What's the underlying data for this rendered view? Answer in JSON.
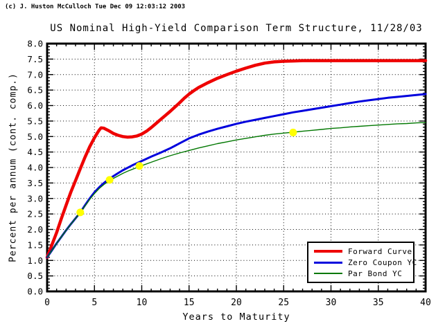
{
  "window": {
    "copyright": "(c) J. Huston McCulloch Tue Dec 09 12:03:12 2003"
  },
  "chart_data": {
    "type": "line",
    "title": "US Nominal High-Yield Comparison Term Structure, 11/28/03",
    "xlabel": "Years to Maturity",
    "ylabel": "Percent per annum (cont. comp.)",
    "xlim": [
      0,
      40
    ],
    "ylim": [
      0,
      8
    ],
    "x_major_ticks": [
      "0",
      "5",
      "10",
      "15",
      "20",
      "25",
      "30",
      "35",
      "40"
    ],
    "x_minor_step": 1,
    "y_tick_labels": [
      "0.0",
      "0.5",
      "1.0",
      "1.5",
      "2.0",
      "2.5",
      "3.0",
      "3.5",
      "4.0",
      "4.5",
      "5.0",
      "5.5",
      "6.0",
      "6.5",
      "7.0",
      "7.5",
      "8.0"
    ],
    "y_major_step": 0.5,
    "y_minor_step": 0.1,
    "grid": "dotted black at every major tick, box frame with inward ticks on all four sides",
    "legend_position": "lower right",
    "series": [
      {
        "name": "Forward Curve",
        "color": "#ee0000",
        "line_width": 4.5,
        "points": [
          [
            0,
            1.1
          ],
          [
            0.5,
            1.5
          ],
          [
            1,
            1.9
          ],
          [
            1.5,
            2.35
          ],
          [
            2,
            2.78
          ],
          [
            2.5,
            3.2
          ],
          [
            3,
            3.58
          ],
          [
            3.5,
            3.96
          ],
          [
            4,
            4.33
          ],
          [
            4.5,
            4.67
          ],
          [
            5,
            4.96
          ],
          [
            5.3,
            5.11
          ],
          [
            5.5,
            5.21
          ],
          [
            5.7,
            5.28
          ],
          [
            6,
            5.27
          ],
          [
            6.5,
            5.19
          ],
          [
            7,
            5.1
          ],
          [
            7.5,
            5.04
          ],
          [
            8,
            5.0
          ],
          [
            8.5,
            4.98
          ],
          [
            9,
            4.99
          ],
          [
            9.5,
            5.02
          ],
          [
            10,
            5.08
          ],
          [
            10.5,
            5.17
          ],
          [
            11,
            5.29
          ],
          [
            11.5,
            5.42
          ],
          [
            12,
            5.55
          ],
          [
            12.5,
            5.68
          ],
          [
            13,
            5.81
          ],
          [
            13.5,
            5.95
          ],
          [
            14,
            6.09
          ],
          [
            14.5,
            6.24
          ],
          [
            15,
            6.37
          ],
          [
            15.5,
            6.48
          ],
          [
            16,
            6.58
          ],
          [
            17,
            6.74
          ],
          [
            18,
            6.88
          ],
          [
            19,
            7.0
          ],
          [
            20,
            7.11
          ],
          [
            21,
            7.21
          ],
          [
            22,
            7.3
          ],
          [
            23,
            7.37
          ],
          [
            24,
            7.41
          ],
          [
            25,
            7.43
          ],
          [
            26,
            7.44
          ],
          [
            27,
            7.45
          ],
          [
            28,
            7.45
          ],
          [
            30,
            7.45
          ],
          [
            32,
            7.45
          ],
          [
            34,
            7.45
          ],
          [
            36,
            7.45
          ],
          [
            38,
            7.45
          ],
          [
            40,
            7.45
          ]
        ]
      },
      {
        "name": "Zero Coupon YC",
        "color": "#0000dd",
        "line_width": 3,
        "points": [
          [
            0,
            1.1
          ],
          [
            0.5,
            1.32
          ],
          [
            1,
            1.55
          ],
          [
            1.5,
            1.76
          ],
          [
            2,
            1.97
          ],
          [
            2.5,
            2.17
          ],
          [
            3,
            2.36
          ],
          [
            3.5,
            2.55
          ],
          [
            4,
            2.78
          ],
          [
            4.5,
            3.0
          ],
          [
            5,
            3.2
          ],
          [
            5.5,
            3.36
          ],
          [
            6,
            3.5
          ],
          [
            6.5,
            3.62
          ],
          [
            7,
            3.72
          ],
          [
            7.5,
            3.82
          ],
          [
            8,
            3.91
          ],
          [
            8.5,
            3.99
          ],
          [
            9,
            4.07
          ],
          [
            9.5,
            4.14
          ],
          [
            10,
            4.21
          ],
          [
            11,
            4.35
          ],
          [
            12,
            4.48
          ],
          [
            13,
            4.62
          ],
          [
            14,
            4.78
          ],
          [
            15,
            4.94
          ],
          [
            16,
            5.06
          ],
          [
            17,
            5.16
          ],
          [
            18,
            5.25
          ],
          [
            19,
            5.33
          ],
          [
            20,
            5.41
          ],
          [
            21,
            5.48
          ],
          [
            22,
            5.54
          ],
          [
            23,
            5.6
          ],
          [
            24,
            5.66
          ],
          [
            25,
            5.72
          ],
          [
            26,
            5.78
          ],
          [
            27,
            5.83
          ],
          [
            28,
            5.88
          ],
          [
            29,
            5.93
          ],
          [
            30,
            5.98
          ],
          [
            31,
            6.03
          ],
          [
            32,
            6.08
          ],
          [
            33,
            6.13
          ],
          [
            34,
            6.17
          ],
          [
            35,
            6.21
          ],
          [
            36,
            6.25
          ],
          [
            37,
            6.28
          ],
          [
            38,
            6.31
          ],
          [
            39,
            6.34
          ],
          [
            40,
            6.37
          ]
        ]
      },
      {
        "name": "Par Bond YC",
        "color": "#007700",
        "line_width": 1.4,
        "points": [
          [
            0,
            1.1
          ],
          [
            0.5,
            1.32
          ],
          [
            1,
            1.55
          ],
          [
            1.5,
            1.76
          ],
          [
            2,
            1.97
          ],
          [
            2.5,
            2.17
          ],
          [
            3,
            2.36
          ],
          [
            3.5,
            2.54
          ],
          [
            4,
            2.76
          ],
          [
            4.5,
            2.97
          ],
          [
            5,
            3.16
          ],
          [
            5.5,
            3.32
          ],
          [
            6,
            3.45
          ],
          [
            6.5,
            3.56
          ],
          [
            7,
            3.65
          ],
          [
            7.5,
            3.73
          ],
          [
            8,
            3.81
          ],
          [
            8.5,
            3.88
          ],
          [
            9,
            3.94
          ],
          [
            9.5,
            4.0
          ],
          [
            10,
            4.06
          ],
          [
            11,
            4.17
          ],
          [
            12,
            4.28
          ],
          [
            13,
            4.38
          ],
          [
            14,
            4.47
          ],
          [
            15,
            4.55
          ],
          [
            16,
            4.63
          ],
          [
            17,
            4.7
          ],
          [
            18,
            4.77
          ],
          [
            19,
            4.83
          ],
          [
            20,
            4.89
          ],
          [
            21,
            4.94
          ],
          [
            22,
            4.99
          ],
          [
            23,
            5.04
          ],
          [
            24,
            5.08
          ],
          [
            25,
            5.11
          ],
          [
            26,
            5.14
          ],
          [
            27,
            5.17
          ],
          [
            28,
            5.2
          ],
          [
            29,
            5.23
          ],
          [
            30,
            5.26
          ],
          [
            31,
            5.28
          ],
          [
            32,
            5.31
          ],
          [
            33,
            5.33
          ],
          [
            34,
            5.35
          ],
          [
            35,
            5.37
          ],
          [
            36,
            5.39
          ],
          [
            37,
            5.41
          ],
          [
            38,
            5.42
          ],
          [
            39,
            5.44
          ],
          [
            40,
            5.45
          ]
        ]
      }
    ],
    "markers": {
      "name": "observed bond points",
      "color": "#ffff00",
      "radius": 5.5,
      "points": [
        [
          3.5,
          2.55
        ],
        [
          6.6,
          3.6
        ],
        [
          9.75,
          4.05
        ],
        [
          26,
          5.13
        ]
      ]
    }
  }
}
